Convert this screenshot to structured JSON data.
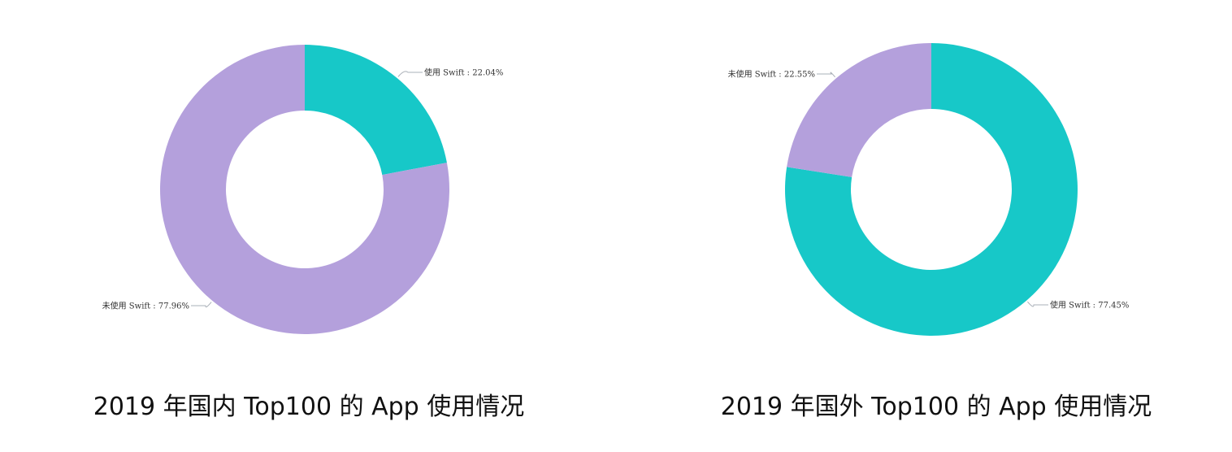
{
  "colors": {
    "used": "#17c8c8",
    "unused": "#b4a0dc"
  },
  "chart_data": [
    {
      "type": "pie",
      "title": "2019 年国内 Top100 的 App 使用情况",
      "slices": [
        {
          "label": "使用 Swift : 22.04%",
          "value": 22.04,
          "color": "#17c8c8"
        },
        {
          "label": "未使用 Swift : 77.96%",
          "value": 77.96,
          "color": "#b4a0dc"
        }
      ]
    },
    {
      "type": "pie",
      "title": "2019 年国外 Top100 的 App 使用情况",
      "slices": [
        {
          "label": "使用 Swift : 77.45%",
          "value": 77.45,
          "color": "#17c8c8"
        },
        {
          "label": "未使用 Swift : 22.55%",
          "value": 22.55,
          "color": "#b4a0dc"
        }
      ]
    }
  ]
}
